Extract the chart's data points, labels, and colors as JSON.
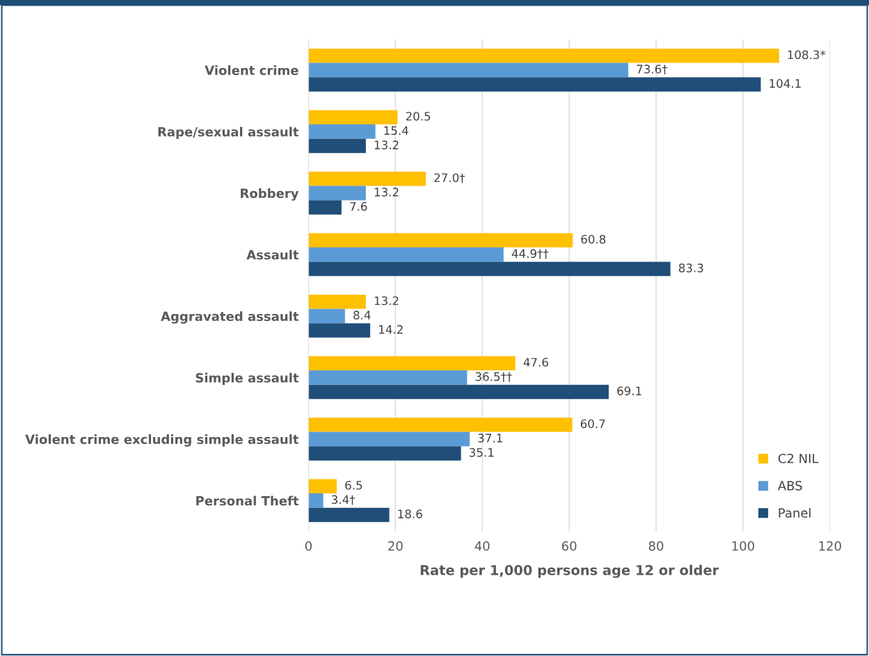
{
  "chart_data": {
    "type": "bar",
    "orientation": "horizontal",
    "xlabel": "Rate per 1,000 persons age 12 or older",
    "categories": [
      "Violent crime",
      "Rape/sexual assault",
      "Robbery",
      "Assault",
      "Aggravated assault",
      "Simple assault",
      "Violent crime excluding simple assault",
      "Personal Theft"
    ],
    "series": [
      {
        "name": "C2 NIL",
        "color": "#ffc000",
        "values": [
          108.3,
          20.5,
          27.0,
          60.8,
          13.2,
          47.6,
          60.7,
          6.5
        ],
        "value_labels": [
          "108.3*",
          "20.5",
          "27.0†",
          "60.8",
          "13.2",
          "47.6",
          "60.7",
          "6.5"
        ]
      },
      {
        "name": "ABS",
        "color": "#5b9bd5",
        "values": [
          73.6,
          15.4,
          13.2,
          44.9,
          8.4,
          36.5,
          37.1,
          3.4
        ],
        "value_labels": [
          "73.6†",
          "15.4",
          "13.2",
          "44.9††",
          "8.4",
          "36.5††",
          "37.1",
          "3.4†"
        ]
      },
      {
        "name": "Panel",
        "color": "#1f4e79",
        "values": [
          104.1,
          13.2,
          7.6,
          83.3,
          14.2,
          69.1,
          35.1,
          18.6
        ],
        "value_labels": [
          "104.1",
          "13.2",
          "7.6",
          "83.3",
          "14.2",
          "69.1",
          "35.1",
          "18.6"
        ]
      }
    ],
    "xlim": [
      0,
      120
    ],
    "xticks": [
      0,
      20,
      40,
      60,
      80,
      100,
      120
    ],
    "grid": "x",
    "legend": "bottom right"
  }
}
